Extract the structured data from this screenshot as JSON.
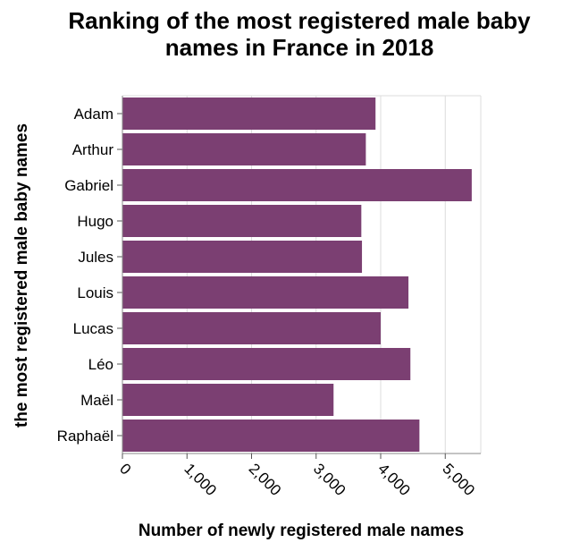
{
  "chart_data": {
    "type": "bar",
    "orientation": "horizontal",
    "title": "Ranking of the most registered male baby names in France in 2018",
    "title_lines": [
      "Ranking of the most registered male baby",
      "names in France in 2018"
    ],
    "xlabel": "Number of newly registered male names",
    "ylabel": "the most registered male baby names",
    "categories": [
      "Adam",
      "Arthur",
      "Gabriel",
      "Hugo",
      "Jules",
      "Louis",
      "Lucas",
      "Léo",
      "Maël",
      "Raphaël"
    ],
    "values": [
      3920,
      3770,
      5410,
      3700,
      3710,
      4430,
      4000,
      4460,
      3270,
      4600
    ],
    "xlim": [
      0,
      5550
    ],
    "xticks": [
      0,
      1000,
      2000,
      3000,
      4000,
      5000
    ],
    "xtick_labels": [
      "0",
      "1,000",
      "2,000",
      "3,000",
      "4,000",
      "5,000"
    ],
    "grid": true,
    "bar_color": "#7b3f72"
  }
}
